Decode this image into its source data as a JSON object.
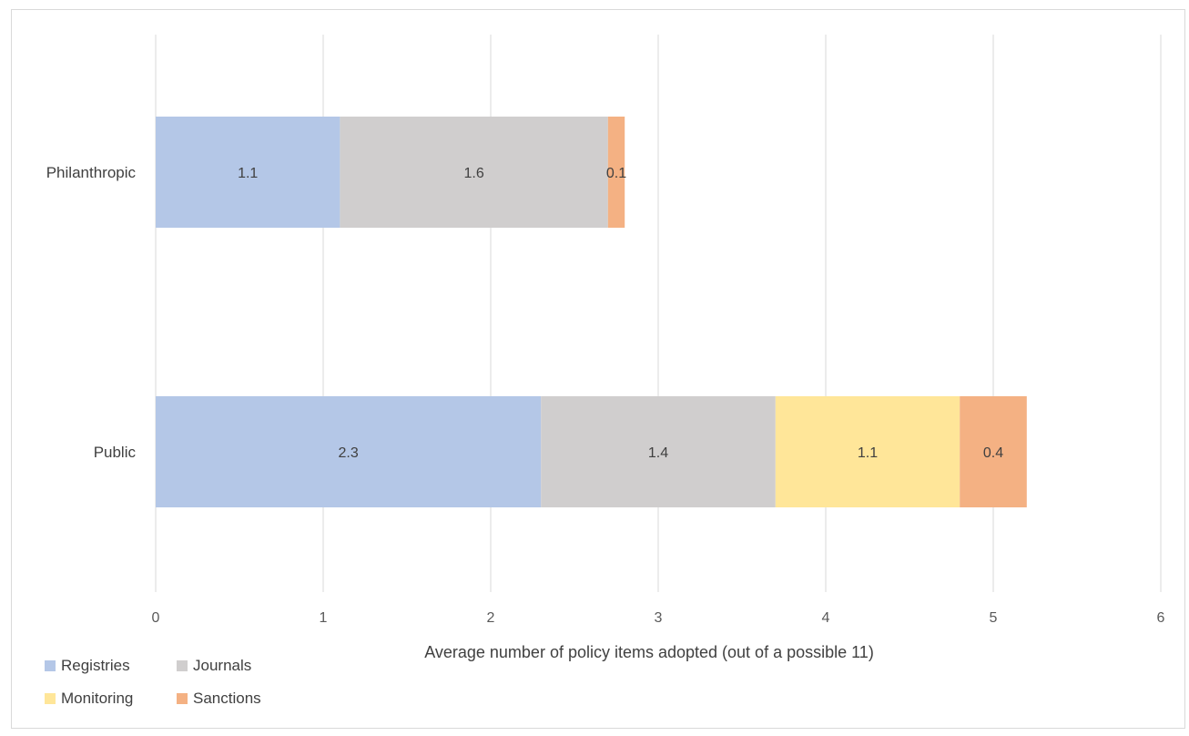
{
  "chart_data": {
    "type": "bar",
    "orientation": "horizontal",
    "stacked": true,
    "categories": [
      "Philanthropic",
      "Public"
    ],
    "series": [
      {
        "name": "Registries",
        "values": [
          1.1,
          2.3
        ],
        "color": "#b4c7e7"
      },
      {
        "name": "Journals",
        "values": [
          1.6,
          1.4
        ],
        "color": "#d0cece"
      },
      {
        "name": "Monitoring",
        "values": [
          null,
          1.1
        ],
        "color": "#ffe699"
      },
      {
        "name": "Sanctions",
        "values": [
          0.1,
          0.4
        ],
        "color": "#f4b183"
      }
    ],
    "xlabel": "Average number of policy items adopted (out of a possible 11)",
    "ylabel": "",
    "xlim": [
      0,
      6
    ],
    "xticks": [
      0,
      1,
      2,
      3,
      4,
      5,
      6
    ],
    "grid": "vertical",
    "legend_position": "bottom-left",
    "data_labels": true
  }
}
